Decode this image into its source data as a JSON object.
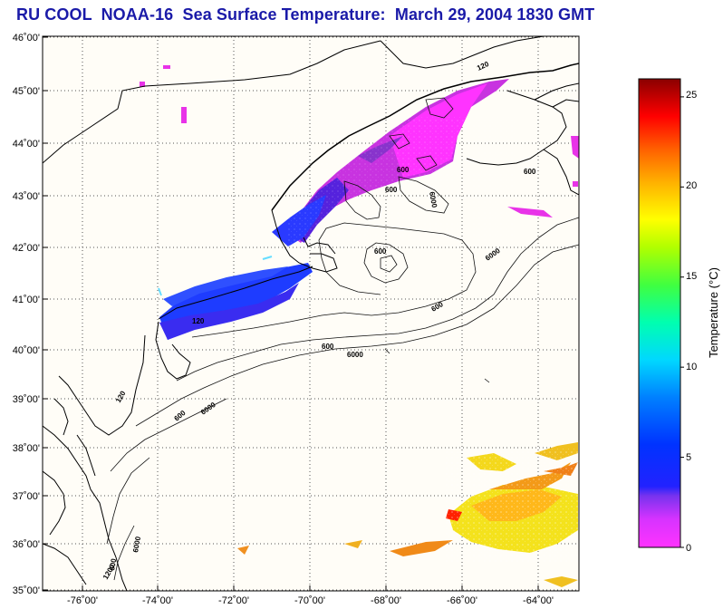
{
  "title": "RU COOL  NOAA-16  Sea Surface Temperature:  March 29, 2004 1830 GMT",
  "lat_labels": [
    "46˚00'",
    "45˚00'",
    "44˚00'",
    "43˚00'",
    "42˚00'",
    "41˚00'",
    "40˚00'",
    "39˚00'",
    "38˚00'",
    "37˚00'",
    "36˚00'",
    "35˚00'"
  ],
  "lon_labels": [
    "-76˚00'",
    "-74˚00'",
    "-72˚00'",
    "-70˚00'",
    "-68˚00'",
    "-66˚00'",
    "-64˚00'"
  ],
  "contour_labels": [
    "120",
    "600",
    "600",
    "600",
    "6000",
    "600",
    "120",
    "600",
    "6000",
    "120",
    "600",
    "6000",
    "6000",
    "600",
    "6000",
    "1200",
    "600"
  ],
  "colorbar": {
    "title": "Temperature (°C)",
    "min": 0,
    "max": 26,
    "ticks": [
      "25",
      "20",
      "15",
      "10",
      "5",
      "0"
    ]
  },
  "colors": {
    "title": "#1a1aa8",
    "land_outline": "#000000",
    "grid": "#555555"
  }
}
